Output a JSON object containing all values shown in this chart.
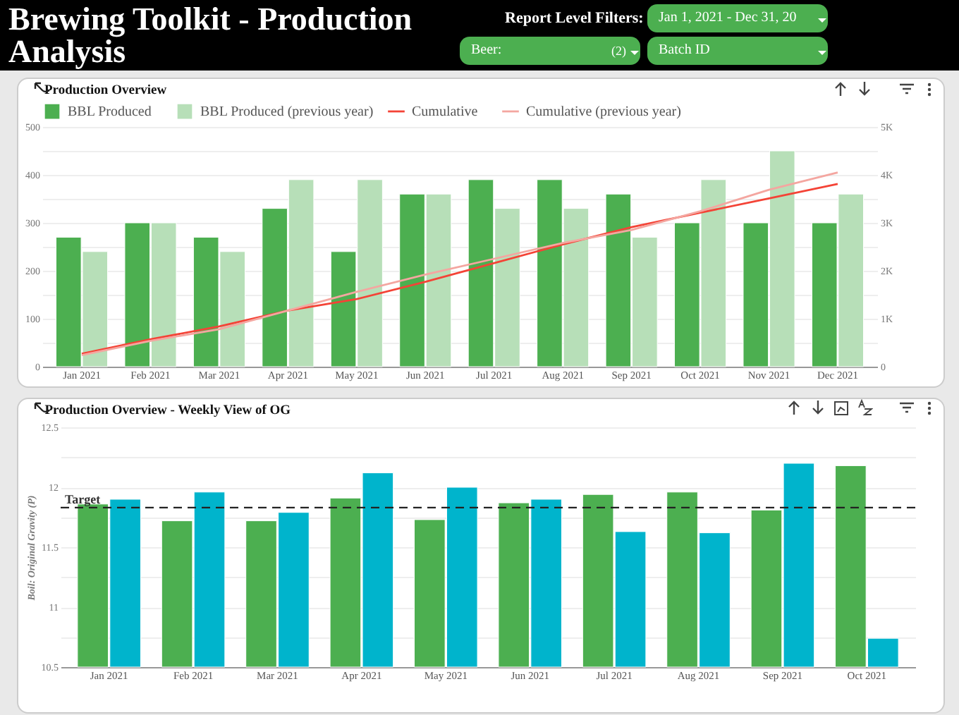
{
  "chart_data": [
    {
      "type": "bar",
      "title": "Production Overview",
      "annotations": [
        "Brewing Toolkit - Production Analysis",
        "Report Level Filters:",
        "Jan 1, 2021 - Dec 31, 20",
        "Beer:",
        "(2)",
        "Batch ID"
      ],
      "categories": [
        "Jan 2021",
        "Feb 2021",
        "Mar 2021",
        "Apr 2021",
        "May 2021",
        "Jun 2021",
        "Jul 2021",
        "Aug 2021",
        "Sep 2021",
        "Oct 2021",
        "Nov 2021",
        "Dec 2021"
      ],
      "series": [
        {
          "name": "BBL Produced",
          "color": "#4caf50",
          "values": [
            270,
            300,
            270,
            330,
            240,
            360,
            390,
            390,
            360,
            300,
            300,
            300
          ]
        },
        {
          "name": "Cumulative",
          "type": "line",
          "axis": "y2",
          "color": "#f44336",
          "values": [
            270,
            570,
            840,
            1170,
            1410,
            1770,
            2160,
            2550,
            2910,
            3210,
            3510,
            3810
          ]
        },
        {
          "name": "BBL Produced (previous year)",
          "color": "#b7dfb8",
          "values": [
            240,
            300,
            240,
            390,
            390,
            360,
            330,
            330,
            270,
            390,
            450,
            360
          ]
        },
        {
          "name": "Cumulative (previous year)",
          "type": "line",
          "axis": "y2",
          "color": "#f4a6a0",
          "values": [
            240,
            540,
            780,
            1170,
            1560,
            1920,
            2250,
            2580,
            2850,
            3240,
            3690,
            4050
          ]
        }
      ],
      "ylim": [
        0,
        500
      ],
      "yticks": [
        0,
        {
          "value": 50,
          "label": null
        },
        100,
        {
          "value": 150,
          "label": null
        },
        200,
        {
          "value": 250,
          "label": null
        },
        300,
        {
          "value": 350,
          "label": null
        },
        400,
        {
          "value": 450,
          "label": null
        },
        500
      ],
      "y2lim": [
        0,
        5000
      ],
      "y2ticks": [
        0,
        {
          "value": 1000,
          "label": "1K"
        },
        {
          "value": 2000,
          "label": "2K"
        },
        {
          "value": 3000,
          "label": "3K"
        },
        {
          "value": 4000,
          "label": "4K"
        },
        {
          "value": 5000,
          "label": "5K"
        }
      ],
      "grid": "y",
      "legend": "top left",
      "marker": "none",
      "line_style": "solid"
    },
    {
      "type": "bar",
      "title": "Production Overview - Weekly View of OG",
      "ylabel": "Boil: Original Gravity (P)",
      "categories": [
        "Jan 2021",
        "Feb 2021",
        "Mar 2021",
        "Apr 2021",
        "May 2021",
        "Jun 2021",
        "Jul 2021",
        "Aug 2021",
        "Sep 2021",
        "Oct 2021"
      ],
      "series": [
        {
          "color": "#4caf50",
          "values": [
            11.86,
            11.72,
            11.72,
            11.91,
            11.73,
            11.87,
            11.94,
            11.96,
            11.81,
            12.18
          ]
        },
        {
          "color": "#00b4cc",
          "values": [
            11.9,
            11.96,
            11.79,
            12.12,
            12.0,
            11.9,
            11.63,
            11.62,
            12.2,
            10.74
          ]
        }
      ],
      "ylim": [
        10.5,
        12.5
      ],
      "yticks": [
        10.5,
        {
          "value": 10.75,
          "label": null
        },
        11,
        {
          "value": 11.25,
          "label": null
        },
        11.5,
        {
          "value": 11.75,
          "label": null
        },
        12,
        {
          "value": 12.25,
          "label": null
        },
        12.5
      ],
      "ref_lines": [
        {
          "axis": "y",
          "value": 11.83,
          "label": "Target",
          "color": "#222222",
          "line_style": "dashed"
        }
      ],
      "grid": "y"
    }
  ]
}
